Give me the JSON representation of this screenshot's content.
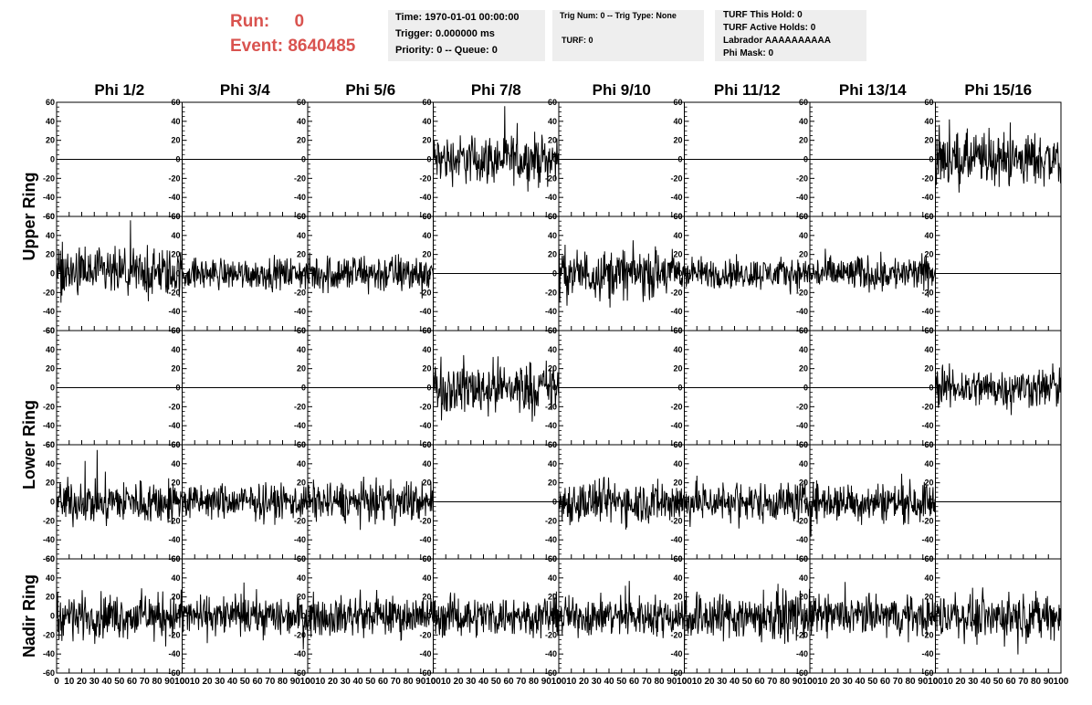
{
  "header": {
    "run_label": "Run:",
    "run_value": "0",
    "event_label": "Event:",
    "event_value": "8640485"
  },
  "info_time": {
    "time": "Time: 1970-01-01 00:00:00",
    "trigger": "Trigger: 0.000000 ms",
    "priority": "Priority: 0 -- Queue: 0"
  },
  "info_trig": {
    "trig": "Trig Num: 0 -- Trig Type: None",
    "turf": "TURF: 0"
  },
  "info_turf": {
    "hold": "TURF This Hold: 0",
    "active": "TURF Active Holds: 0",
    "labrador": "Labrador AAAAAAAAAA",
    "phimask": "Phi Mask: 0"
  },
  "chart_data": {
    "type": "line",
    "xlim": [
      0,
      100
    ],
    "ylim": [
      -60,
      60
    ],
    "x_ticks": [
      "0",
      "10",
      "20",
      "30",
      "40",
      "50",
      "60",
      "70",
      "80",
      "90",
      "100"
    ],
    "y_ticks": [
      "60",
      "40",
      "20",
      "0",
      "-20",
      "-40",
      "-60"
    ],
    "columns": [
      "Phi 1/2",
      "Phi 3/4",
      "Phi 5/6",
      "Phi 7/8",
      "Phi 9/10",
      "Phi 11/12",
      "Phi 13/14",
      "Phi 15/16"
    ],
    "ring_labels": [
      "Upper Ring",
      "Lower Ring",
      "Nadir Ring"
    ],
    "panels": [
      [
        {
          "active": false,
          "amp": 0
        },
        {
          "active": false,
          "amp": 0
        },
        {
          "active": false,
          "amp": 0
        },
        {
          "active": true,
          "amp": 22
        },
        {
          "active": false,
          "amp": 0
        },
        {
          "active": false,
          "amp": 0
        },
        {
          "active": false,
          "amp": 0
        },
        {
          "active": true,
          "amp": 24
        }
      ],
      [
        {
          "active": true,
          "amp": 22
        },
        {
          "active": true,
          "amp": 14
        },
        {
          "active": true,
          "amp": 18
        },
        {
          "active": false,
          "amp": 0
        },
        {
          "active": true,
          "amp": 22
        },
        {
          "active": true,
          "amp": 14
        },
        {
          "active": true,
          "amp": 16
        },
        {
          "active": false,
          "amp": 0
        }
      ],
      [
        {
          "active": false,
          "amp": 0
        },
        {
          "active": false,
          "amp": 0
        },
        {
          "active": false,
          "amp": 0
        },
        {
          "active": true,
          "amp": 24
        },
        {
          "active": false,
          "amp": 0
        },
        {
          "active": false,
          "amp": 0
        },
        {
          "active": false,
          "amp": 0
        },
        {
          "active": true,
          "amp": 18
        }
      ],
      [
        {
          "active": true,
          "amp": 20
        },
        {
          "active": true,
          "amp": 16
        },
        {
          "active": true,
          "amp": 18
        },
        {
          "active": false,
          "amp": 0
        },
        {
          "active": true,
          "amp": 20
        },
        {
          "active": true,
          "amp": 18
        },
        {
          "active": true,
          "amp": 18
        },
        {
          "active": false,
          "amp": 0
        }
      ],
      [
        {
          "active": true,
          "amp": 20
        },
        {
          "active": true,
          "amp": 18
        },
        {
          "active": true,
          "amp": 18
        },
        {
          "active": true,
          "amp": 18
        },
        {
          "active": true,
          "amp": 18
        },
        {
          "active": true,
          "amp": 22
        },
        {
          "active": true,
          "amp": 18
        },
        {
          "active": true,
          "amp": 20
        }
      ]
    ]
  }
}
